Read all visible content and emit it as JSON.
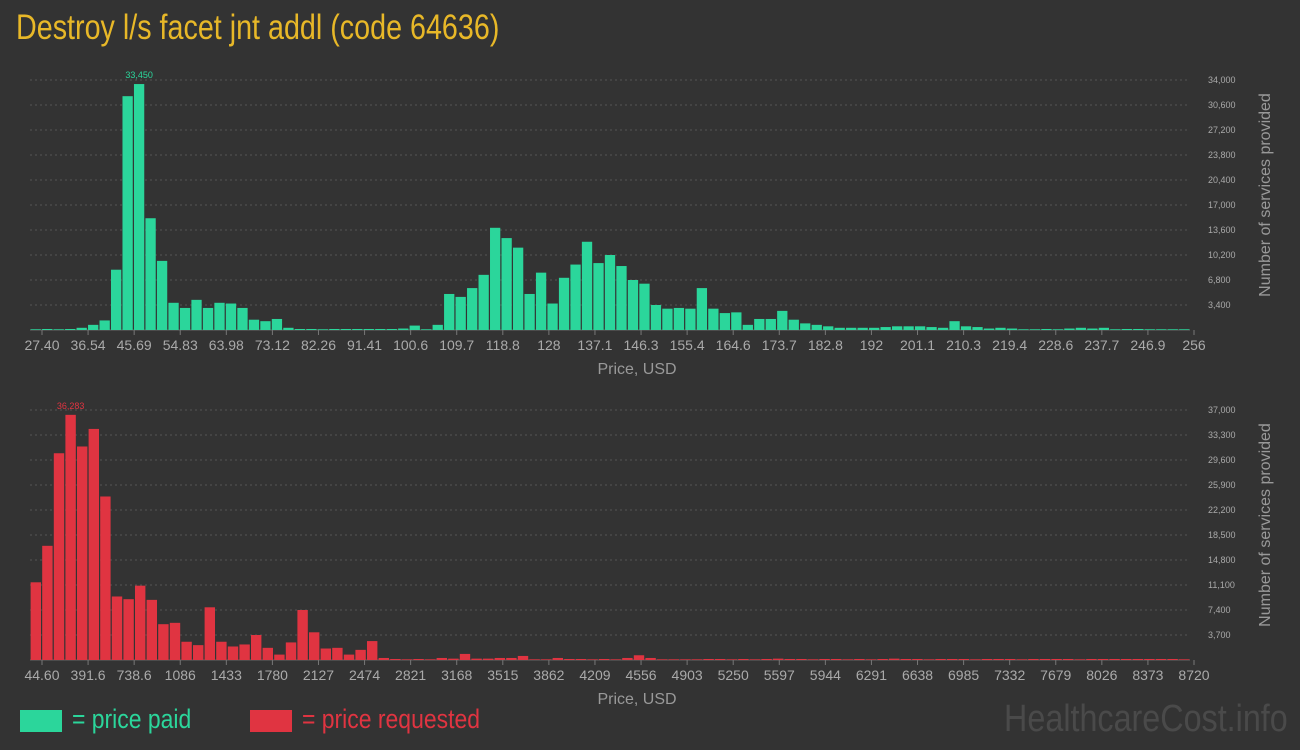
{
  "page": {
    "title": "Destroy l/s facet jnt addl (code 64636)",
    "brand": "HealthcareCost.info"
  },
  "legend": [
    {
      "label": "= price paid",
      "color": "#2bd69b"
    },
    {
      "label": "= price requested",
      "color": "#e03441"
    }
  ],
  "chart_data": [
    {
      "type": "bar",
      "name": "price paid",
      "color": "#2bd69b",
      "xlabel": "Price, USD",
      "ylabel": "Number of services provided",
      "ylim": [
        0,
        34000
      ],
      "peak_label": "33,450",
      "peak_index": 9,
      "yticks": [
        "3,400",
        "6,800",
        "10,200",
        "13,600",
        "17,000",
        "20,400",
        "23,800",
        "27,200",
        "30,600",
        "34,000"
      ],
      "ytick_values": [
        3400,
        6800,
        10200,
        13600,
        17000,
        20400,
        23800,
        27200,
        30600,
        34000
      ],
      "xticks": [
        "27.40",
        "36.54",
        "45.69",
        "54.83",
        "63.98",
        "73.12",
        "82.26",
        "91.41",
        "100.6",
        "109.7",
        "118.8",
        "128",
        "137.1",
        "146.3",
        "155.4",
        "164.6",
        "173.7",
        "182.8",
        "192",
        "201.1",
        "210.3",
        "219.4",
        "228.6",
        "237.7",
        "246.9",
        "256"
      ],
      "values": [
        100,
        0,
        100,
        0,
        300,
        700,
        1300,
        8200,
        31800,
        33450,
        15200,
        9400,
        3700,
        3000,
        4100,
        3000,
        3700,
        3600,
        3000,
        1400,
        1200,
        1500,
        300,
        0,
        0,
        100,
        0,
        0,
        0,
        0,
        0,
        0,
        200,
        600,
        100,
        700,
        4900,
        4500,
        5700,
        7500,
        13900,
        12500,
        11200,
        4900,
        7800,
        3600,
        7100,
        8900,
        12000,
        9100,
        10200,
        8700,
        6800,
        6300,
        3400,
        2900,
        3000,
        2900,
        5700,
        2900,
        2300,
        2400,
        700,
        1500,
        1500,
        2600,
        1400,
        900,
        700,
        500,
        300,
        300,
        300,
        300,
        400,
        500,
        500,
        500,
        400,
        300,
        1200,
        500,
        400,
        200,
        300,
        200,
        100,
        100,
        0,
        100,
        200,
        300,
        200,
        300,
        100,
        0,
        0,
        100,
        100,
        100,
        100
      ]
    },
    {
      "type": "bar",
      "name": "price requested",
      "color": "#e03441",
      "xlabel": "Price, USD",
      "ylabel": "Number of services provided",
      "ylim": [
        0,
        37000
      ],
      "peak_label": "36,283",
      "peak_index": 3,
      "yticks": [
        "3,700",
        "7,400",
        "11,100",
        "14,800",
        "18,500",
        "22,200",
        "25,900",
        "29,600",
        "33,300",
        "37,000"
      ],
      "ytick_values": [
        3700,
        7400,
        11100,
        14800,
        18500,
        22200,
        25900,
        29600,
        33300,
        37000
      ],
      "xticks": [
        "44.60",
        "391.6",
        "738.6",
        "1086",
        "1433",
        "1780",
        "2127",
        "2474",
        "2821",
        "3168",
        "3515",
        "3862",
        "4209",
        "4556",
        "4903",
        "5250",
        "5597",
        "5944",
        "6291",
        "6638",
        "6985",
        "7332",
        "7679",
        "8026",
        "8373",
        "8720"
      ],
      "values": [
        11500,
        16900,
        30600,
        36283,
        31600,
        34200,
        24200,
        9400,
        9000,
        11000,
        8900,
        5300,
        5500,
        2700,
        2200,
        7800,
        2700,
        2000,
        2300,
        3700,
        1800,
        800,
        2600,
        7400,
        4100,
        1700,
        1800,
        800,
        1500,
        2800,
        300,
        0,
        100,
        0,
        100,
        300,
        200,
        900,
        200,
        200,
        300,
        300,
        600,
        100,
        100,
        300,
        0,
        0,
        100,
        0,
        100,
        300,
        700,
        300,
        100,
        100,
        100,
        100,
        0,
        0,
        100,
        0,
        100,
        0,
        200,
        0,
        0,
        100,
        0,
        0,
        100,
        0,
        100,
        0,
        200,
        0,
        0,
        100,
        0,
        0,
        0,
        100,
        0,
        0,
        0,
        100,
        0,
        0,
        0,
        0,
        100,
        0,
        0,
        0,
        0,
        0,
        0,
        0,
        0,
        100
      ]
    }
  ]
}
